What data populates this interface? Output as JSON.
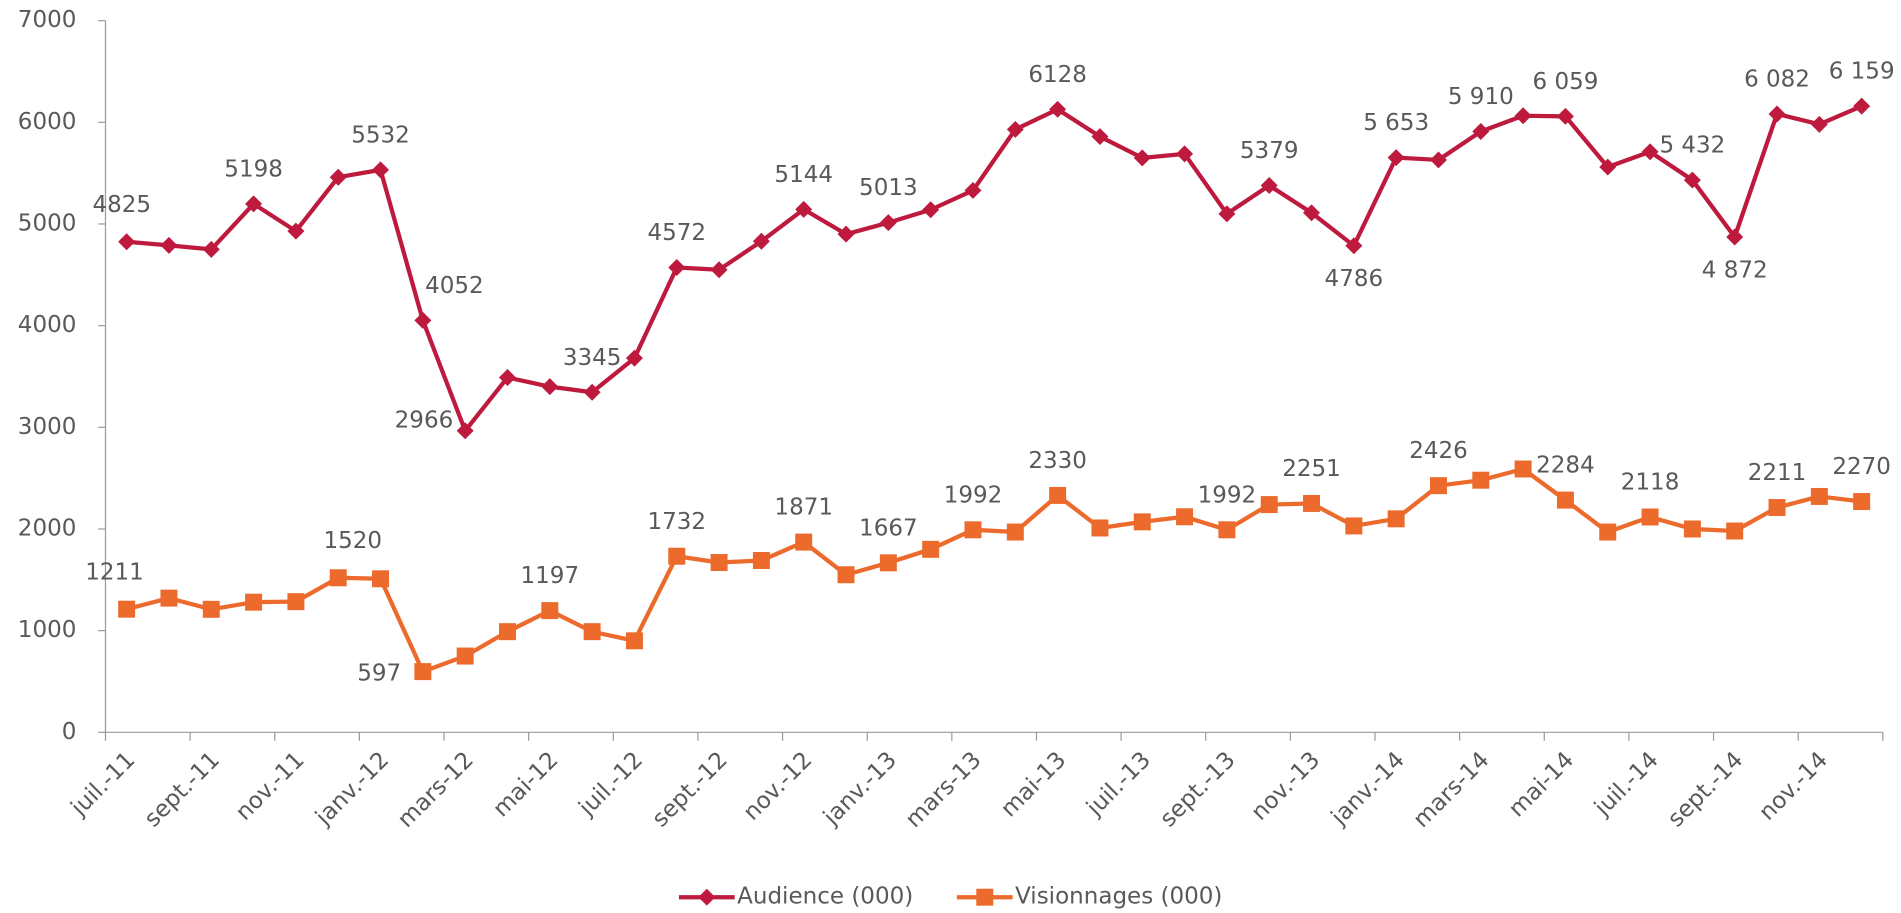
{
  "chart_data": {
    "type": "line",
    "categories": [
      "juil.-11",
      null,
      "sept.-11",
      null,
      "nov.-11",
      null,
      "janv.-12",
      null,
      "mars-12",
      null,
      "mai-12",
      null,
      "juil.-12",
      null,
      "sept.-12",
      null,
      "nov.-12",
      null,
      "janv.-13",
      null,
      "mars-13",
      null,
      "mai-13",
      null,
      "juil.-13",
      null,
      "sept.-13",
      null,
      "nov.-13",
      null,
      "janv.-14",
      null,
      "mars-14",
      null,
      "mai-14",
      null,
      "juil.-14",
      null,
      "sept.-14",
      null,
      "nov.-14",
      null
    ],
    "series": [
      {
        "name": "Audience (000)",
        "color": "#be1a3e",
        "marker": "diamond",
        "values": [
          4825,
          4790,
          4750,
          5198,
          4930,
          5460,
          5532,
          4052,
          2966,
          3490,
          3400,
          3345,
          3680,
          4572,
          4550,
          4830,
          5144,
          4900,
          5013,
          5140,
          5330,
          5930,
          6128,
          5860,
          5650,
          5690,
          5100,
          5379,
          5110,
          4786,
          5653,
          5630,
          5910,
          6065,
          6059,
          5560,
          5710,
          5432,
          4872,
          6082,
          5980,
          6159
        ],
        "value_labels": [
          "4825",
          null,
          null,
          "5198",
          null,
          null,
          "5532",
          "4052",
          "2966",
          null,
          null,
          "3345",
          null,
          "4572",
          null,
          null,
          "5144",
          null,
          "5013",
          null,
          null,
          null,
          "6128",
          null,
          null,
          null,
          null,
          "5379",
          null,
          "4786",
          "5 653",
          null,
          "5 910",
          null,
          "6 059",
          null,
          null,
          "5 432",
          "4 872",
          "6 082",
          null,
          "6 159"
        ]
      },
      {
        "name": "Visionnages (000)",
        "color": "#ec6a2c",
        "marker": "square",
        "values": [
          1211,
          1320,
          1210,
          1280,
          1285,
          1520,
          1510,
          597,
          750,
          990,
          1197,
          990,
          900,
          1732,
          1670,
          1690,
          1871,
          1550,
          1667,
          1800,
          1992,
          1970,
          2330,
          2010,
          2070,
          2120,
          1992,
          2240,
          2251,
          2030,
          2100,
          2426,
          2480,
          2590,
          2284,
          1970,
          2118,
          2000,
          1980,
          2211,
          2320,
          2270
        ],
        "value_labels": [
          "1211",
          null,
          null,
          null,
          null,
          "1520",
          null,
          "597",
          null,
          null,
          "1197",
          null,
          null,
          "1732",
          null,
          null,
          "1871",
          null,
          "1667",
          null,
          "1992",
          null,
          "2330",
          null,
          null,
          null,
          "1992",
          null,
          "2251",
          null,
          null,
          "2426",
          null,
          null,
          "2284",
          null,
          "2118",
          null,
          null,
          "2211",
          null,
          "2270"
        ]
      }
    ],
    "ylim": [
      0,
      7000
    ],
    "yticks": [
      0,
      1000,
      2000,
      3000,
      4000,
      5000,
      6000,
      7000
    ],
    "grid": false,
    "legend": "bottom"
  }
}
